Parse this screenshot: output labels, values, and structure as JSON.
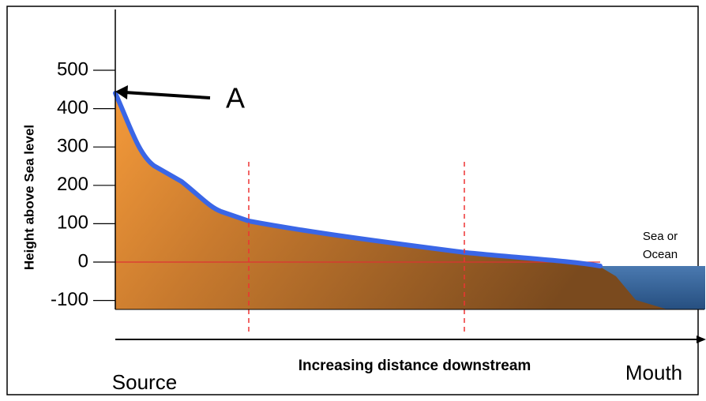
{
  "y_axis": {
    "label": "Height above Sea level",
    "ticks": [
      500,
      400,
      300,
      200,
      100,
      0,
      -100
    ]
  },
  "marker": {
    "label": "A"
  },
  "sea": {
    "lines": [
      "Sea or",
      "Ocean"
    ]
  },
  "x_axis": {
    "label": "Increasing distance downstream",
    "start": "Source",
    "end": "Mouth"
  }
}
